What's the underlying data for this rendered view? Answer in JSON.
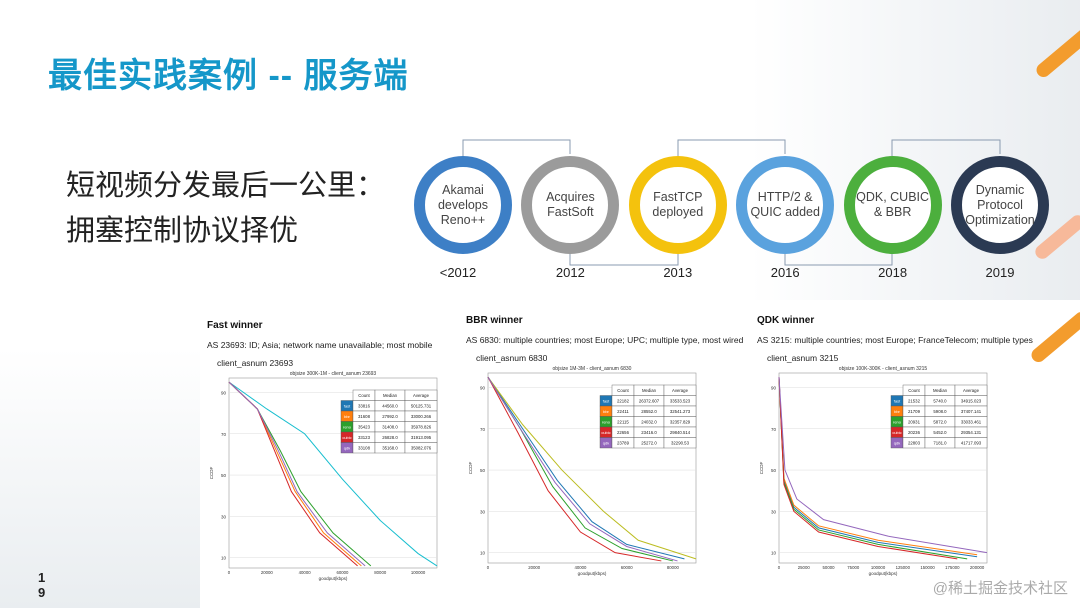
{
  "title": "最佳实践案例 -- 服务端",
  "subtitle_lines": [
    "短视频分发最后一公里：",
    "拥塞控制协议择优"
  ],
  "timeline": [
    {
      "label": "Akamai develops Reno++",
      "year": "<2012",
      "color": "#3d7fc6"
    },
    {
      "label": "Acquires FastSoft",
      "year": "2012",
      "color": "#9b9b9b"
    },
    {
      "label": "FastTCP deployed",
      "year": "2013",
      "color": "#f4c20d"
    },
    {
      "label": "HTTP/2 & QUIC added",
      "year": "2016",
      "color": "#5aa2de"
    },
    {
      "label": "QDK, CUBIC & BBR",
      "year": "2018",
      "color": "#4caf3d"
    },
    {
      "label": "Dynamic Protocol Optimization",
      "year": "2019",
      "color": "#2b3a53"
    }
  ],
  "page_number": [
    "1",
    "9"
  ],
  "watermark": "@稀土掘金技术社区",
  "chart_data": [
    {
      "type": "line",
      "heading": "Fast winner",
      "desc": "AS 23693: ID; Asia; network name unavailable; most mobile",
      "asn": "client_asnum 23693",
      "title": "objsize 300K-1M - client_asnum 23693",
      "xlabel": "goodput(kbps)",
      "ylabel": "CCDF",
      "xlim": [
        0,
        110000
      ],
      "ylim": [
        5,
        97
      ],
      "xticks": [
        0,
        20000,
        40000,
        60000,
        80000,
        100000
      ],
      "yticks": [
        10,
        30,
        50,
        70,
        90
      ],
      "table": {
        "headers": [
          "Count",
          "Median",
          "Average"
        ],
        "rows": [
          {
            "name": "fast",
            "color": "#1f77b4",
            "values": [
              "33816",
              "44560.0",
              "50125.731"
            ]
          },
          {
            "name": "bbr",
            "color": "#ff7f0e",
            "values": [
              "31608",
              "27992.0",
              "33000.266"
            ]
          },
          {
            "name": "reno",
            "color": "#2ca02c",
            "values": [
              "35423",
              "31408.0",
              "35978.826"
            ]
          },
          {
            "name": "cubic",
            "color": "#d62728",
            "values": [
              "33123",
              "26828.0",
              "31913.095"
            ]
          },
          {
            "name": "qdk",
            "color": "#9467bd",
            "values": [
              "33108",
              "35168.0",
              "35082.076"
            ]
          }
        ]
      },
      "series": [
        {
          "name": "fast",
          "color": "#17becf",
          "x": [
            0,
            20000,
            40000,
            60000,
            80000,
            100000,
            110000
          ],
          "y": [
            95,
            82,
            70,
            48,
            28,
            12,
            6
          ]
        },
        {
          "name": "bbr",
          "color": "#ff7f0e",
          "x": [
            0,
            15000,
            25000,
            35000,
            50000,
            70000
          ],
          "y": [
            95,
            82,
            62,
            42,
            22,
            6
          ]
        },
        {
          "name": "reno",
          "color": "#2ca02c",
          "x": [
            0,
            15000,
            27000,
            38000,
            55000,
            75000
          ],
          "y": [
            95,
            82,
            62,
            42,
            22,
            6
          ]
        },
        {
          "name": "cubic",
          "color": "#d62728",
          "x": [
            0,
            15000,
            24000,
            33000,
            48000,
            68000
          ],
          "y": [
            95,
            82,
            62,
            42,
            22,
            6
          ]
        },
        {
          "name": "qdk",
          "color": "#9467bd",
          "x": [
            0,
            15000,
            26000,
            36000,
            52000,
            72000
          ],
          "y": [
            95,
            82,
            62,
            42,
            22,
            6
          ]
        }
      ]
    },
    {
      "type": "line",
      "heading": "BBR winner",
      "desc": "AS 6830: multiple countries; most Europe; UPC; multiple type, most wired",
      "asn": "client_asnum 6830",
      "title": "objsize 1M-3M - client_asnum 6830",
      "xlabel": "goodput(kbps)",
      "ylabel": "CCDF",
      "xlim": [
        0,
        90000
      ],
      "ylim": [
        5,
        97
      ],
      "xticks": [
        0,
        20000,
        40000,
        60000,
        80000
      ],
      "yticks": [
        10,
        30,
        50,
        70,
        90
      ],
      "table": {
        "headers": [
          "Count",
          "Median",
          "Average"
        ],
        "rows": [
          {
            "name": "fast",
            "color": "#1f77b4",
            "values": [
              "22182",
              "26372.607",
              "33533.523"
            ]
          },
          {
            "name": "bbr",
            "color": "#ff7f0e",
            "values": [
              "22411",
              "28552.0",
              "32541.273"
            ]
          },
          {
            "name": "reno",
            "color": "#2ca02c",
            "values": [
              "22115",
              "24032.0",
              "32357.829"
            ]
          },
          {
            "name": "cubic",
            "color": "#d62728",
            "values": [
              "22656",
              "23416.0",
              "29840.514"
            ]
          },
          {
            "name": "qdk",
            "color": "#9467bd",
            "values": [
              "23789",
              "25272.0",
              "32290.53"
            ]
          }
        ]
      },
      "series": [
        {
          "name": "fast",
          "color": "#1f77b4",
          "x": [
            0,
            15000,
            30000,
            45000,
            60000,
            85000
          ],
          "y": [
            95,
            70,
            45,
            25,
            14,
            7
          ]
        },
        {
          "name": "bbr",
          "color": "#bcbd22",
          "x": [
            0,
            15000,
            32000,
            50000,
            65000,
            90000
          ],
          "y": [
            95,
            72,
            50,
            30,
            16,
            7
          ]
        },
        {
          "name": "reno",
          "color": "#2ca02c",
          "x": [
            0,
            14000,
            28000,
            42000,
            58000,
            80000
          ],
          "y": [
            95,
            70,
            42,
            22,
            12,
            6
          ]
        },
        {
          "name": "cubic",
          "color": "#d62728",
          "x": [
            0,
            13000,
            26000,
            40000,
            55000,
            75000
          ],
          "y": [
            95,
            68,
            40,
            20,
            10,
            6
          ]
        },
        {
          "name": "qdk",
          "color": "#9467bd",
          "x": [
            0,
            14000,
            29000,
            44000,
            60000,
            82000
          ],
          "y": [
            95,
            70,
            44,
            24,
            13,
            6
          ]
        }
      ]
    },
    {
      "type": "line",
      "heading": "QDK winner",
      "desc": "AS 3215: multiple countries; most Europe; FranceTelecom; multiple types",
      "asn": "client_asnum 3215",
      "title": "objsize 100K-300K - client_asnum 3215",
      "xlabel": "goodput(kbps)",
      "ylabel": "CCDF",
      "xlim": [
        0,
        210000
      ],
      "ylim": [
        5,
        97
      ],
      "xticks": [
        0,
        25000,
        50000,
        75000,
        100000,
        125000,
        150000,
        175000,
        200000
      ],
      "yticks": [
        10,
        30,
        50,
        70,
        90
      ],
      "table": {
        "headers": [
          "Count",
          "Median",
          "Average"
        ],
        "rows": [
          {
            "name": "fast",
            "color": "#1f77b4",
            "values": [
              "21532",
              "5740.0",
              "34915.023"
            ]
          },
          {
            "name": "bbr",
            "color": "#ff7f0e",
            "values": [
              "21709",
              "5908.0",
              "37407.141"
            ]
          },
          {
            "name": "reno",
            "color": "#2ca02c",
            "values": [
              "20931",
              "5872.0",
              "33033.461"
            ]
          },
          {
            "name": "cubic",
            "color": "#d62728",
            "values": [
              "20236",
              "5452.0",
              "29354.131"
            ]
          },
          {
            "name": "qdk",
            "color": "#9467bd",
            "values": [
              "22803",
              "7181.0",
              "41717.093"
            ]
          }
        ]
      },
      "series": [
        {
          "name": "fast",
          "color": "#1f77b4",
          "x": [
            0,
            5000,
            15000,
            40000,
            100000,
            200000
          ],
          "y": [
            95,
            45,
            32,
            22,
            15,
            8
          ]
        },
        {
          "name": "bbr",
          "color": "#ff7f0e",
          "x": [
            0,
            5000,
            15000,
            40000,
            100000,
            200000
          ],
          "y": [
            95,
            46,
            33,
            23,
            16,
            9
          ]
        },
        {
          "name": "reno",
          "color": "#2ca02c",
          "x": [
            0,
            5000,
            15000,
            40000,
            100000,
            190000
          ],
          "y": [
            95,
            44,
            31,
            21,
            14,
            7
          ]
        },
        {
          "name": "cubic",
          "color": "#d62728",
          "x": [
            0,
            5000,
            15000,
            40000,
            100000,
            180000
          ],
          "y": [
            95,
            43,
            30,
            20,
            13,
            7
          ]
        },
        {
          "name": "qdk",
          "color": "#9467bd",
          "x": [
            0,
            6000,
            18000,
            45000,
            110000,
            210000
          ],
          "y": [
            95,
            50,
            36,
            26,
            18,
            10
          ]
        }
      ]
    }
  ]
}
